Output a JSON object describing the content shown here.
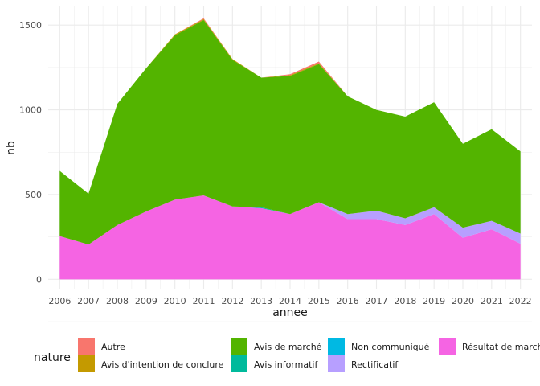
{
  "chart_data": {
    "type": "area",
    "stacked": true,
    "xlabel": "annee",
    "ylabel": "nb",
    "x": [
      2006,
      2007,
      2008,
      2009,
      2010,
      2011,
      2012,
      2013,
      2014,
      2015,
      2016,
      2017,
      2018,
      2019,
      2020,
      2021,
      2022
    ],
    "xlim": [
      2005.6,
      2022.4
    ],
    "ylim": [
      -60,
      1610
    ],
    "yticks": [
      0,
      500,
      1000,
      1500
    ],
    "grid": true,
    "legend_title": "nature",
    "legend_position": "bottom",
    "series": [
      {
        "name": "Résultat de marché",
        "color": "#F564E3",
        "values": [
          255,
          205,
          320,
          400,
          470,
          495,
          430,
          420,
          385,
          455,
          355,
          355,
          320,
          385,
          245,
          295,
          210
        ]
      },
      {
        "name": "Rectificatif",
        "color": "#B79FFF",
        "values": [
          0,
          0,
          0,
          0,
          0,
          0,
          0,
          0,
          0,
          0,
          30,
          50,
          40,
          40,
          60,
          50,
          60
        ]
      },
      {
        "name": "Non communiqué",
        "color": "#00B9E3",
        "values": [
          0,
          0,
          0,
          0,
          0,
          0,
          0,
          0,
          0,
          0,
          0,
          0,
          0,
          0,
          0,
          0,
          0
        ]
      },
      {
        "name": "Avis informatif",
        "color": "#00BA9C",
        "values": [
          0,
          0,
          0,
          0,
          0,
          0,
          0,
          5,
          0,
          0,
          0,
          0,
          0,
          0,
          0,
          0,
          0
        ]
      },
      {
        "name": "Avis de marché",
        "color": "#53B400",
        "values": [
          385,
          300,
          715,
          845,
          970,
          1035,
          865,
          765,
          815,
          815,
          695,
          595,
          600,
          620,
          495,
          540,
          485
        ]
      },
      {
        "name": "Avis d'intention de conclure",
        "color": "#C49A00",
        "values": [
          0,
          0,
          0,
          0,
          5,
          5,
          5,
          0,
          5,
          5,
          0,
          0,
          0,
          0,
          0,
          0,
          0
        ]
      },
      {
        "name": "Autre",
        "color": "#F8766D",
        "values": [
          0,
          0,
          0,
          0,
          0,
          5,
          0,
          0,
          5,
          10,
          0,
          0,
          0,
          0,
          0,
          0,
          0
        ]
      }
    ],
    "legend_entries": [
      "Autre",
      "Avis d'intention de conclure",
      "Avis de marché",
      "Avis informatif",
      "Non communiqué",
      "Rectificatif",
      "Résultat de marché"
    ]
  }
}
